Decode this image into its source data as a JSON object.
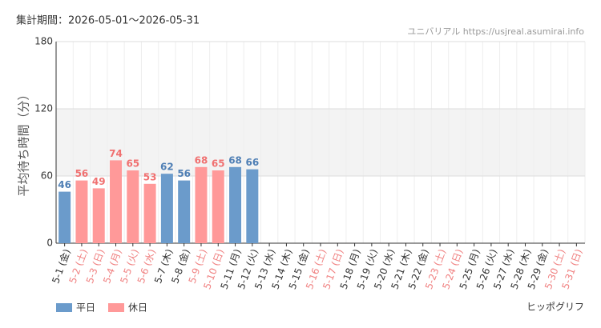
{
  "chart_data": {
    "type": "bar",
    "title": "集計期間：2026-05-01～2026-05-31",
    "source": "ユニバリアル  https://usjreal.asumirai.info",
    "credit": "ヒッポグリフ",
    "y_label": "平均待ち時間（分）",
    "categories": [
      "5-1 (金)",
      "5-2 (土)",
      "5-3 (日)",
      "5-4 (月)",
      "5-5 (火)",
      "5-6 (水)",
      "5-7 (木)",
      "5-8 (金)",
      "5-9 (土)",
      "5-10 (日)",
      "5-11 (月)",
      "5-12 (火)",
      "5-13 (水)",
      "5-14 (木)",
      "5-15 (金)",
      "5-16 (土)",
      "5-17 (日)",
      "5-18 (月)",
      "5-19 (火)",
      "5-20 (水)",
      "5-21 (木)",
      "5-22 (金)",
      "5-23 (土)",
      "5-24 (日)",
      "5-25 (月)",
      "5-26 (火)",
      "5-27 (水)",
      "5-28 (木)",
      "5-29 (金)",
      "5-30 (土)",
      "5-31 (日)"
    ],
    "category_colors": [
      "#333",
      "#f08080",
      "#f08080",
      "#f08080",
      "#f08080",
      "#f08080",
      "#333",
      "#333",
      "#f08080",
      "#f08080",
      "#333",
      "#333",
      "#333",
      "#333",
      "#333",
      "#f08080",
      "#f08080",
      "#333",
      "#333",
      "#333",
      "#333",
      "#333",
      "#f08080",
      "#f08080",
      "#333",
      "#333",
      "#333",
      "#333",
      "#333",
      "#f08080",
      "#f08080"
    ],
    "series": [
      {
        "name": "平日",
        "color": "#6b9bcb",
        "label_color": "#4f7fb5",
        "values": [
          46,
          null,
          null,
          null,
          null,
          null,
          62,
          56,
          null,
          null,
          68,
          66,
          null,
          null,
          null,
          null,
          null,
          null,
          null,
          null,
          null,
          null,
          null,
          null,
          null,
          null,
          null,
          null,
          null,
          null,
          null
        ]
      },
      {
        "name": "休日",
        "color": "#ff9999",
        "label_color": "#f07070",
        "values": [
          null,
          56,
          49,
          74,
          65,
          53,
          null,
          null,
          68,
          65,
          null,
          null,
          null,
          null,
          null,
          null,
          null,
          null,
          null,
          null,
          null,
          null,
          null,
          null,
          null,
          null,
          null,
          null,
          null,
          null,
          null
        ]
      }
    ],
    "ylim": [
      0,
      180
    ],
    "yticks": [
      0,
      60,
      120,
      180
    ],
    "highlight_range": [
      60,
      120
    ],
    "grid": true
  }
}
